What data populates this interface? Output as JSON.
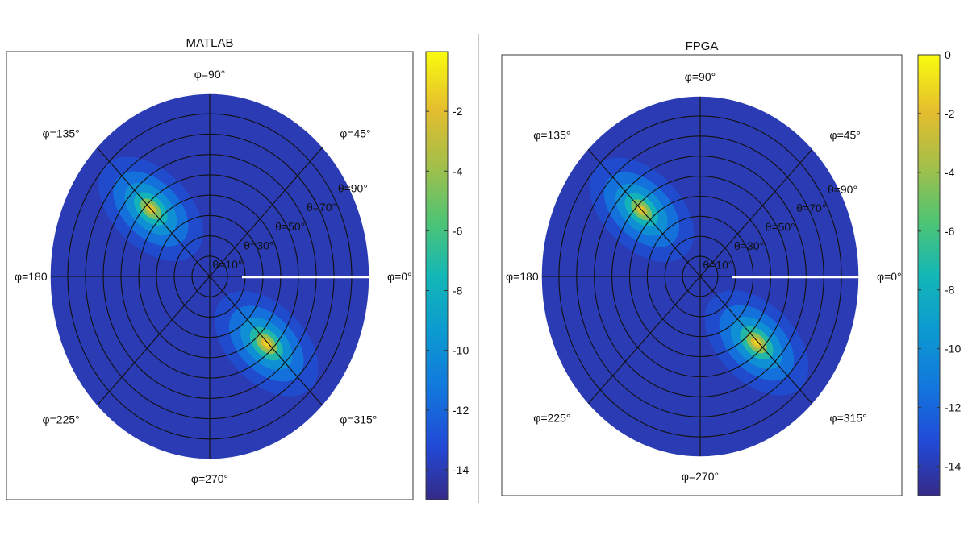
{
  "chart_data": [
    {
      "type": "heatmap",
      "subtype": "polar-heatmap",
      "title": "MATLAB",
      "colormap": "parula",
      "colorbar": {
        "range": [
          -15,
          0
        ],
        "ticks": [
          -2,
          -4,
          -6,
          -8,
          -10,
          -12,
          -14
        ],
        "tick_labels": [
          "-2",
          "-4",
          "-6",
          "-8",
          "-10",
          "-12",
          "-14"
        ]
      },
      "radial_axis": {
        "symbol": "θ",
        "unit": "°",
        "ticks": [
          10,
          30,
          50,
          70,
          90
        ],
        "tick_labels": [
          "θ=10°",
          "θ=30°",
          "θ=50°",
          "θ=70°",
          "θ=90°"
        ],
        "rings": [
          10,
          20,
          30,
          40,
          50,
          60,
          70,
          80,
          90
        ]
      },
      "angular_axis": {
        "symbol": "φ",
        "unit": "°",
        "spokes": [
          0,
          45,
          90,
          135,
          180,
          225,
          270,
          315
        ],
        "labels": [
          "φ=0°",
          "φ=45°",
          "φ=90°",
          "φ=135°",
          "φ=180",
          "φ=225°",
          "φ=270°",
          "φ=315°"
        ]
      },
      "peaks": [
        {
          "theta": 47,
          "phi": 135,
          "value": -1.5
        },
        {
          "theta": 46,
          "phi": 314,
          "value": -1
        }
      ],
      "background_level": -14,
      "color_range": [
        -15,
        -1
      ]
    },
    {
      "type": "heatmap",
      "subtype": "polar-heatmap",
      "title": "FPGA",
      "colormap": "parula",
      "colorbar": {
        "range": [
          -15,
          0
        ],
        "ticks": [
          0,
          -2,
          -4,
          -6,
          -8,
          -10,
          -12,
          -14
        ],
        "tick_labels": [
          "0",
          "-2",
          "-4",
          "-6",
          "-8",
          "-10",
          "-12",
          "-14"
        ]
      },
      "radial_axis": {
        "symbol": "θ",
        "unit": "°",
        "ticks": [
          10,
          30,
          50,
          70,
          90
        ],
        "tick_labels": [
          "θ=10°",
          "θ=30°",
          "θ=50°",
          "θ=70°",
          "θ=90°"
        ],
        "rings": [
          10,
          20,
          30,
          40,
          50,
          60,
          70,
          80,
          90
        ]
      },
      "angular_axis": {
        "symbol": "φ",
        "unit": "°",
        "spokes": [
          0,
          45,
          90,
          135,
          180,
          225,
          270,
          315
        ],
        "labels": [
          "φ=0°",
          "φ=45°",
          "φ=90°",
          "φ=135°",
          "φ=180",
          "φ=225°",
          "φ=270°",
          "φ=315°"
        ]
      },
      "peaks": [
        {
          "theta": 47,
          "phi": 135,
          "value": -1.5
        },
        {
          "theta": 46,
          "phi": 314,
          "value": -1
        }
      ],
      "background_level": -14,
      "color_range": [
        -15,
        -1
      ]
    }
  ]
}
